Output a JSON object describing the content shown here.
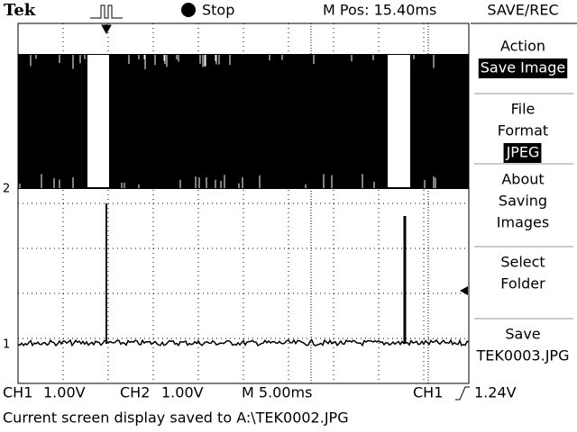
{
  "header": {
    "logo": "Tek",
    "run_state": "Stop",
    "position": "M Pos: 15.40ms"
  },
  "channel_markers": [
    "2",
    "1"
  ],
  "menu": {
    "title": "SAVE/REC",
    "items": [
      {
        "label": [
          "Action"
        ],
        "value": "Save Image"
      },
      {
        "label": [
          "File",
          "Format"
        ],
        "value": "JPEG"
      },
      {
        "label": [
          "About",
          "Saving",
          "Images"
        ]
      },
      {
        "label": [
          "Select",
          "Folder"
        ]
      },
      {
        "label": [
          "Save",
          "TEK0003.JPG"
        ]
      }
    ]
  },
  "footer": {
    "ch1": "CH1",
    "ch1_scale": "1.00V",
    "ch2": "CH2",
    "ch2_scale": "1.00V",
    "timebase": "M 5.00ms",
    "trigger_source": "CH1",
    "trigger_level": "1.24V"
  },
  "status": "Current screen display saved to A:\\TEK0002.JPG"
}
